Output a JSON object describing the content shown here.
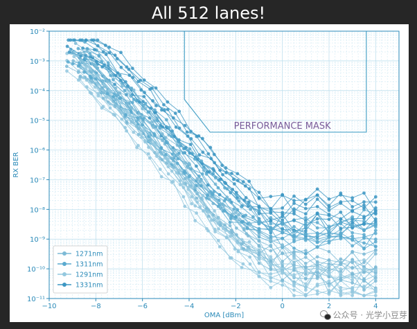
{
  "slide": {
    "title": "All 512 lanes!"
  },
  "watermark": {
    "text": "公众号 · 光学小豆芽",
    "icon": "wechat-icon"
  },
  "chart_data": {
    "type": "line",
    "title": "",
    "xlabel": "OMA [dBm]",
    "ylabel": "RX BER",
    "xlim": [
      -10,
      5
    ],
    "ylim_exponent": [
      -11,
      -2
    ],
    "yscale": "log",
    "xticks": [
      -10,
      -8,
      -6,
      -4,
      -2,
      0,
      2,
      4
    ],
    "xtick_labels": [
      "−10",
      "−8",
      "−6",
      "−4",
      "−2",
      "0",
      "2",
      "4"
    ],
    "yticks_exponent": [
      -11,
      -10,
      -9,
      -8,
      -7,
      -6,
      -5,
      -4,
      -3,
      -2
    ],
    "ytick_labels": [
      "10⁻¹¹",
      "10⁻¹⁰",
      "10⁻⁹",
      "10⁻⁸",
      "10⁻⁷",
      "10⁻⁶",
      "10⁻⁵",
      "10⁻⁴",
      "10⁻³",
      "10⁻²"
    ],
    "grid": true,
    "legend_position": "lower-left",
    "series": [
      {
        "name": "1271nm",
        "color": "#7dbad6"
      },
      {
        "name": "1311nm",
        "color": "#5aaacf"
      },
      {
        "name": "1291nm",
        "color": "#94c8df"
      },
      {
        "name": "1331nm",
        "color": "#3d97c3"
      }
    ],
    "x_points": [
      -9,
      -8.5,
      -8,
      -7.5,
      -7,
      -6.5,
      -6,
      -5.5,
      -5,
      -4.5,
      -4,
      -3.5,
      -3,
      -2.5,
      -2,
      -1.5,
      -1,
      -0.5,
      0,
      0.5,
      1,
      1.5,
      2,
      2.5,
      3,
      3.5,
      4
    ],
    "curve_families": [
      {
        "series": "1271nm",
        "log10_ber": [
          -2.9,
          -3.1,
          -3.4,
          -3.8,
          -4.2,
          -4.6,
          -5.0,
          -5.4,
          -5.8,
          -6.2,
          -6.7,
          -7.2,
          -7.7,
          -8.1,
          -8.5,
          -8.9,
          -9.2,
          -9.5,
          -9.7,
          -9.8,
          -9.9,
          -9.9,
          -10.0,
          -10.0,
          -10.0,
          -10.0,
          -10.0
        ]
      },
      {
        "series": "1311nm",
        "log10_ber": [
          -2.6,
          -2.8,
          -3.1,
          -3.5,
          -3.9,
          -4.3,
          -4.7,
          -5.1,
          -5.5,
          -5.9,
          -6.3,
          -6.7,
          -7.1,
          -7.5,
          -7.8,
          -8.1,
          -8.3,
          -8.5,
          -8.6,
          -8.6,
          -8.6,
          -8.6,
          -8.6,
          -8.6,
          -8.6,
          -8.6,
          -8.6
        ]
      },
      {
        "series": "1291nm",
        "log10_ber": [
          -3.0,
          -3.3,
          -3.7,
          -4.1,
          -4.5,
          -4.9,
          -5.4,
          -5.8,
          -6.3,
          -6.8,
          -7.3,
          -7.8,
          -8.3,
          -8.7,
          -9.1,
          -9.4,
          -9.7,
          -9.9,
          -10.1,
          -10.2,
          -10.3,
          -10.3,
          -10.3,
          -10.3,
          -10.3,
          -10.3,
          -10.3
        ]
      },
      {
        "series": "1331nm",
        "log10_ber": [
          -2.5,
          -2.6,
          -2.8,
          -3.1,
          -3.4,
          -3.8,
          -4.2,
          -4.6,
          -5.0,
          -5.4,
          -5.8,
          -6.2,
          -6.6,
          -7.0,
          -7.4,
          -7.7,
          -8.0,
          -8.2,
          -8.3,
          -8.3,
          -8.2,
          -8.2,
          -8.2,
          -8.2,
          -8.2,
          -8.2,
          -8.2
        ]
      }
    ],
    "curves_per_family": 10,
    "mask": {
      "label": "PERFORMANCE MASK",
      "color": "#4aa3c8",
      "label_color": "#7a5c9a",
      "points": [
        [
          -4.2,
          -2
        ],
        [
          -4.2,
          -4.3
        ],
        [
          -3.1,
          -5.4
        ],
        [
          3.6,
          -5.4
        ],
        [
          3.6,
          -2
        ]
      ]
    }
  }
}
